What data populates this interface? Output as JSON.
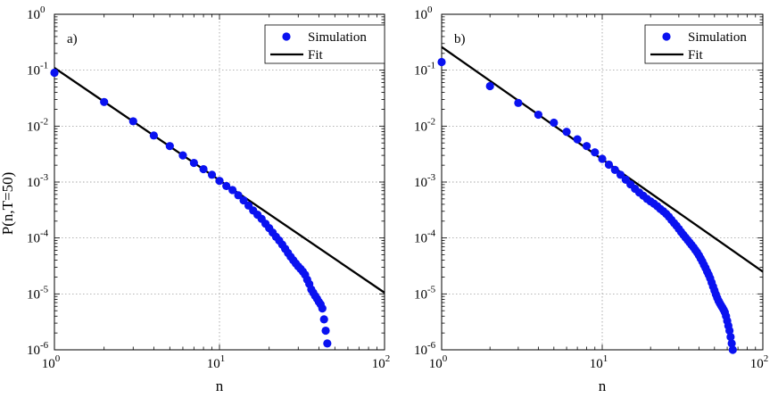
{
  "figure": {
    "ylabel": "P(n,T=50)",
    "xlabel": "n"
  },
  "legend": {
    "simulation": "Simulation",
    "fit": "Fit"
  },
  "colors": {
    "points": "#0a12f0",
    "fit": "#000000",
    "frame": "#000000",
    "background": "#ffffff"
  },
  "chart_data": [
    {
      "type": "scatter",
      "panel_label": "a)",
      "xscale": "log",
      "yscale": "log",
      "xlim": [
        1,
        100
      ],
      "ylim": [
        1e-06,
        1
      ],
      "x_tick_exponents": [
        0,
        1,
        2
      ],
      "y_tick_exponents": [
        0,
        -1,
        -2,
        -3,
        -4,
        -5,
        -6
      ],
      "legend_position": "top-right",
      "series": [
        {
          "name": "Simulation",
          "x": [
            1,
            2,
            3,
            4,
            5,
            6,
            7,
            8,
            9,
            10,
            11,
            12,
            13,
            14,
            15,
            16,
            17,
            18,
            19,
            20,
            21,
            22,
            23,
            24,
            25,
            26,
            27,
            28,
            29,
            30,
            31,
            32,
            33,
            34,
            35,
            36,
            37,
            38,
            39,
            40,
            41,
            42,
            43,
            44,
            45
          ],
          "y": [
            0.09,
            0.027,
            0.0122,
            0.0068,
            0.0044,
            0.003,
            0.0022,
            0.0017,
            0.00135,
            0.00105,
            0.00085,
            0.00072,
            0.00058,
            0.00047,
            0.00038,
            0.00031,
            0.00026,
            0.00022,
            0.00018,
            0.00015,
            0.000125,
            0.000105,
            9e-05,
            7.6e-05,
            6.4e-05,
            5.4e-05,
            4.6e-05,
            4e-05,
            3.5e-05,
            3.1e-05,
            2.8e-05,
            2.5e-05,
            2.2e-05,
            1.8e-05,
            1.5e-05,
            1.2e-05,
            1.05e-05,
            9.2e-06,
            8.2e-06,
            7.2e-06,
            6.5e-06,
            5.5e-06,
            3.5e-06,
            2.2e-06,
            1.3e-06
          ]
        },
        {
          "name": "Fit",
          "line": true,
          "x": [
            1,
            100
          ],
          "y": [
            0.11,
            1.05e-05
          ]
        }
      ]
    },
    {
      "type": "scatter",
      "panel_label": "b)",
      "xscale": "log",
      "yscale": "log",
      "xlim": [
        1,
        100
      ],
      "ylim": [
        1e-06,
        1
      ],
      "x_tick_exponents": [
        0,
        1,
        2
      ],
      "y_tick_exponents": [
        0,
        -1,
        -2,
        -3,
        -4,
        -5,
        -6
      ],
      "legend_position": "top-right",
      "series": [
        {
          "name": "Simulation",
          "x": [
            1,
            2,
            3,
            4,
            5,
            6,
            7,
            8,
            9,
            10,
            11,
            12,
            13,
            14,
            15,
            16,
            17,
            18,
            19,
            20,
            21,
            22,
            23,
            24,
            25,
            26,
            27,
            28,
            29,
            30,
            31,
            32,
            33,
            34,
            35,
            36,
            37,
            38,
            39,
            40,
            41,
            42,
            43,
            44,
            45,
            46,
            47,
            48,
            49,
            50,
            51,
            52,
            53,
            54,
            55,
            56,
            57,
            58,
            59,
            60,
            61,
            62,
            63,
            64,
            65
          ],
          "y": [
            0.14,
            0.052,
            0.026,
            0.016,
            0.0115,
            0.0079,
            0.0058,
            0.0044,
            0.0034,
            0.0026,
            0.00205,
            0.00165,
            0.00135,
            0.0011,
            0.00091,
            0.00076,
            0.00065,
            0.00057,
            0.0005,
            0.00045,
            0.00041,
            0.00037,
            0.00033,
            0.0003,
            0.00027,
            0.00024,
            0.00021,
            0.000185,
            0.000165,
            0.000145,
            0.000128,
            0.000114,
            0.000102,
            9.2e-05,
            8.3e-05,
            7.5e-05,
            6.8e-05,
            6.1e-05,
            5.5e-05,
            4.9e-05,
            4.3e-05,
            3.8e-05,
            3.3e-05,
            2.9e-05,
            2.5e-05,
            2.2e-05,
            1.9e-05,
            1.6e-05,
            1.35e-05,
            1.15e-05,
            9.8e-06,
            8.5e-06,
            7.5e-06,
            6.8e-06,
            6.2e-06,
            5.7e-06,
            5.2e-06,
            4.7e-06,
            4e-06,
            3.3e-06,
            2.7e-06,
            2.2e-06,
            1.7e-06,
            1.3e-06,
            1e-06
          ]
        },
        {
          "name": "Fit",
          "line": true,
          "x": [
            1,
            100
          ],
          "y": [
            0.26,
            2.5e-05
          ]
        }
      ]
    }
  ]
}
